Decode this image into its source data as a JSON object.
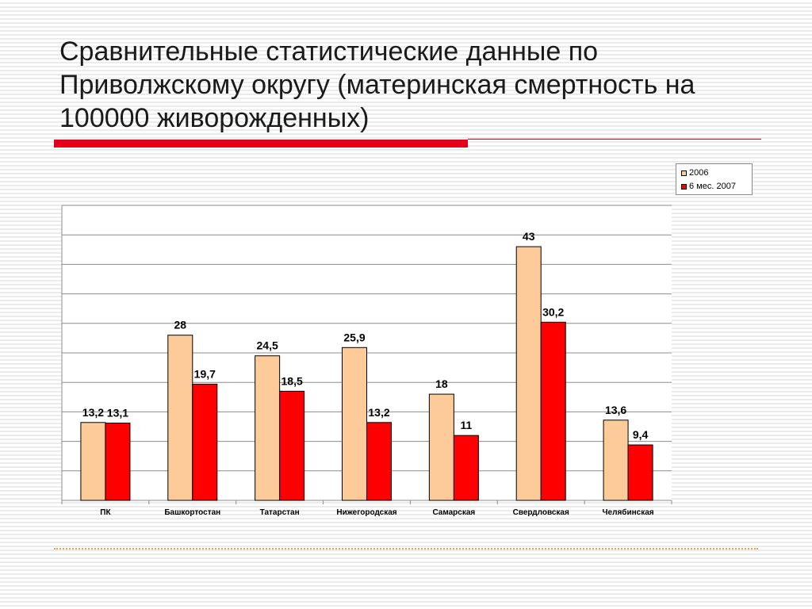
{
  "slide": {
    "title": "Сравнительные статистические данные по Приволжскому округу (материнская смертность на 100000 живорожденных)"
  },
  "colors": {
    "accent": "#e3001b",
    "series_2006": "#fdcb99",
    "series_2007": "#ff0000",
    "bottom_rule": "#e9a24d"
  },
  "chart_data": {
    "type": "bar",
    "title": "",
    "xlabel": "",
    "ylabel": "",
    "ylim": [
      0,
      50
    ],
    "grid": true,
    "legend_position": "top-right",
    "categories": [
      "ПК",
      "Башкортостан",
      "Татарстан",
      "Нижегородская",
      "Самарская",
      "Свердловская",
      "Челябинская"
    ],
    "series": [
      {
        "name": "2006",
        "values": [
          13.2,
          28,
          24.5,
          25.9,
          18,
          43,
          13.6
        ],
        "labels": [
          "13,2",
          "28",
          "24,5",
          "25,9",
          "18",
          "43",
          "13,6"
        ]
      },
      {
        "name": "6 мес. 2007",
        "values": [
          13.1,
          19.7,
          18.5,
          13.2,
          11,
          30.2,
          9.4
        ],
        "labels": [
          "13,1",
          "19,7",
          "18,5",
          "13,2",
          "11",
          "30,2",
          "9,4"
        ]
      }
    ]
  }
}
